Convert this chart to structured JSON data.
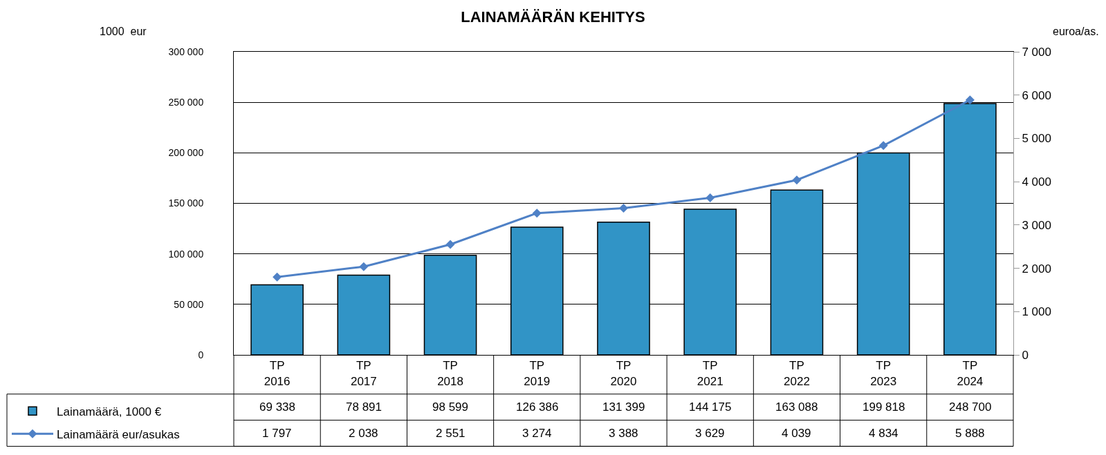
{
  "chart_data": {
    "type": "bar",
    "title": "LAINAMÄÄRÄN KEHITYS",
    "ylabel": "1000  eur",
    "y2label": "euroa/as.",
    "categories": [
      "TP 2016",
      "TP 2017",
      "TP 2018",
      "TP 2019",
      "TP 2020",
      "TP 2021",
      "TP 2022",
      "TP 2023",
      "TP 2024"
    ],
    "series": [
      {
        "name": "Lainamäärä, 1000 €",
        "color": "#3194c6",
        "values": [
          69338,
          78891,
          98599,
          126386,
          131399,
          144175,
          163088,
          199818,
          248700
        ],
        "value_labels": [
          "69 338",
          "78 891",
          "98 599",
          "126 386",
          "131 399",
          "144 175",
          "163 088",
          "199 818",
          "248 700"
        ]
      },
      {
        "name": "Lainamäärä eur/asukas",
        "type": "line",
        "axis": "y2",
        "color": "#4f81c6",
        "marker": "diamond",
        "values": [
          1797,
          2038,
          2551,
          3274,
          3388,
          3629,
          4039,
          4834,
          5888
        ],
        "value_labels": [
          "1 797",
          "2 038",
          "2 551",
          "3 274",
          "3 388",
          "3 629",
          "4 039",
          "4 834",
          "5 888"
        ]
      }
    ],
    "ylim": [
      0,
      300000
    ],
    "yticks": [
      {
        "value": 0,
        "label": "0"
      },
      {
        "value": 50000,
        "label": "50 000"
      },
      {
        "value": 100000,
        "label": "100 000"
      },
      {
        "value": 150000,
        "label": "150 000"
      },
      {
        "value": 200000,
        "label": "200 000"
      },
      {
        "value": 250000,
        "label": "250 000"
      },
      {
        "value": 300000,
        "label": "300 000"
      }
    ],
    "y2lim": [
      0,
      7000
    ],
    "y2ticks": [
      {
        "value": 0,
        "label": "0"
      },
      {
        "value": 1000,
        "label": "1 000"
      },
      {
        "value": 2000,
        "label": "2 000"
      },
      {
        "value": 3000,
        "label": "3 000"
      },
      {
        "value": 4000,
        "label": "4 000"
      },
      {
        "value": 5000,
        "label": "5 000"
      },
      {
        "value": 6000,
        "label": "6 000"
      },
      {
        "value": 7000,
        "label": "7 000"
      }
    ],
    "grid": "y",
    "legend": "bottom left"
  }
}
